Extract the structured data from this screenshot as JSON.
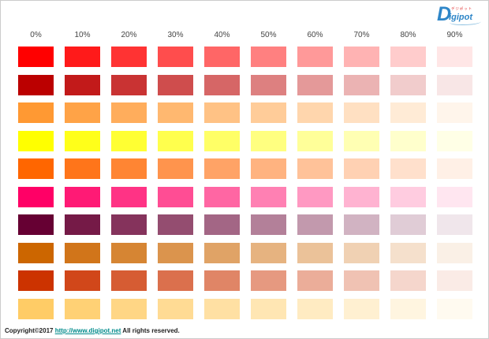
{
  "logo": {
    "brand_initial": "D",
    "brand_rest": "igipot",
    "tagline": "デジポット",
    "brand_color": "#2e86c8",
    "tagline_color": "#e03030"
  },
  "header": {
    "column_labels": [
      "0%",
      "10%",
      "20%",
      "30%",
      "40%",
      "50%",
      "60%",
      "70%",
      "80%",
      "90%"
    ]
  },
  "chart_data": {
    "type": "heatmap",
    "title": "",
    "description": "Color tint chart: 10 base colors (rows) lightened toward white in 10% steps (columns 0%-90%)",
    "columns": [
      "0%",
      "10%",
      "20%",
      "30%",
      "40%",
      "50%",
      "60%",
      "70%",
      "80%",
      "90%"
    ],
    "rows": [
      {
        "name": "red",
        "base": "#FF0000",
        "tints": [
          "#FF0000",
          "#FF1A1A",
          "#FF3333",
          "#FF4D4D",
          "#FF6666",
          "#FF8080",
          "#FF9999",
          "#FFB3B3",
          "#FFCCCC",
          "#FFE6E6"
        ]
      },
      {
        "name": "dark-red",
        "base": "#BB0000",
        "tints": [
          "#BB0000",
          "#C21A1A",
          "#C93333",
          "#CF4D4D",
          "#D66666",
          "#DD8080",
          "#E49999",
          "#EBB3B3",
          "#F1CCCC",
          "#F8E6E6"
        ]
      },
      {
        "name": "light-orange",
        "base": "#FF9933",
        "tints": [
          "#FF9933",
          "#FFA347",
          "#FFAD5C",
          "#FFB870",
          "#FFC285",
          "#FFCC99",
          "#FFD6AD",
          "#FFE0C2",
          "#FFEBD6",
          "#FFF5EB"
        ]
      },
      {
        "name": "yellow",
        "base": "#FFFF00",
        "tints": [
          "#FFFF00",
          "#FFFF1A",
          "#FFFF33",
          "#FFFF4D",
          "#FFFF66",
          "#FFFF80",
          "#FFFF99",
          "#FFFFB3",
          "#FFFFCC",
          "#FFFFE6"
        ]
      },
      {
        "name": "orange",
        "base": "#FF6600",
        "tints": [
          "#FF6600",
          "#FF751A",
          "#FF8533",
          "#FF944D",
          "#FFA366",
          "#FFB380",
          "#FFC299",
          "#FFD1B3",
          "#FFE0CC",
          "#FFF0E6"
        ]
      },
      {
        "name": "pink",
        "base": "#FF0066",
        "tints": [
          "#FF0066",
          "#FF1A75",
          "#FF3385",
          "#FF4D94",
          "#FF66A3",
          "#FF80B3",
          "#FF99C2",
          "#FFB3D1",
          "#FFCCE0",
          "#FFE6F0"
        ]
      },
      {
        "name": "wine",
        "base": "#660033",
        "tints": [
          "#660033",
          "#751A47",
          "#85335C",
          "#944D70",
          "#A36685",
          "#B38099",
          "#C299AD",
          "#D1B3C2",
          "#E0CCD6",
          "#F0E6EB"
        ]
      },
      {
        "name": "ochre",
        "base": "#CC6600",
        "tints": [
          "#CC6600",
          "#D1751A",
          "#D68533",
          "#DB944D",
          "#E0A366",
          "#E6B380",
          "#EBC299",
          "#F0D1B3",
          "#F5E0CC",
          "#FAF0E6"
        ]
      },
      {
        "name": "red-orange",
        "base": "#CC3300",
        "tints": [
          "#CC3300",
          "#D1471A",
          "#D65C33",
          "#DB704D",
          "#E08566",
          "#E69980",
          "#EBAD99",
          "#F0C2B3",
          "#F5D6CC",
          "#FAEBE6"
        ]
      },
      {
        "name": "saffron",
        "base": "#FFCC66",
        "tints": [
          "#FFCC66",
          "#FFD175",
          "#FFD685",
          "#FFDB94",
          "#FFE0A3",
          "#FFE6B3",
          "#FFEBC2",
          "#FFF0D1",
          "#FFF5E0",
          "#FFFAF0"
        ]
      }
    ]
  },
  "footer": {
    "copyright_prefix": "Copyright©2017 ",
    "link_text": "http://www.digipot.net",
    "copyright_suffix": " All rights reserved.",
    "link_color": "#008b8b"
  }
}
